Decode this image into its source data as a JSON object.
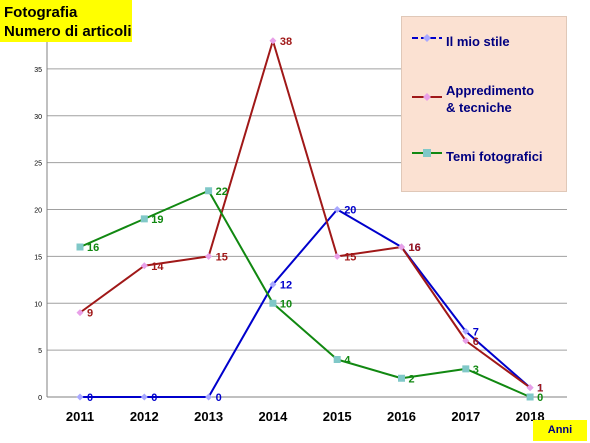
{
  "title_lines": [
    "Fotografia",
    "Numero di articoli"
  ],
  "chart_data": {
    "type": "line",
    "title": "Fotografia Numero di articoli",
    "xlabel": "Anni",
    "ylabel": "",
    "categories": [
      "2011",
      "2012",
      "2013",
      "2014",
      "2015",
      "2016",
      "2017",
      "2018"
    ],
    "yticks": [
      "0",
      "5",
      "10",
      "15",
      "20",
      "25",
      "30",
      "35"
    ],
    "ylim": [
      0,
      40
    ],
    "grid": true,
    "legend_position": "top-right",
    "series": [
      {
        "name": "Il mio stile",
        "color": "#0000cc",
        "marker": "diamond",
        "dashed_legend": true,
        "values": [
          0,
          0,
          0,
          12,
          20,
          16,
          7,
          1
        ]
      },
      {
        "name": "Appredimento\n& tecniche",
        "color": "#a01818",
        "marker": "diamond",
        "values": [
          9,
          14,
          15,
          38,
          15,
          16,
          6,
          1
        ]
      },
      {
        "name": "Temi fotografici",
        "color": "#118811",
        "marker": "square",
        "values": [
          16,
          19,
          22,
          10,
          4,
          2,
          3,
          0
        ]
      }
    ]
  }
}
